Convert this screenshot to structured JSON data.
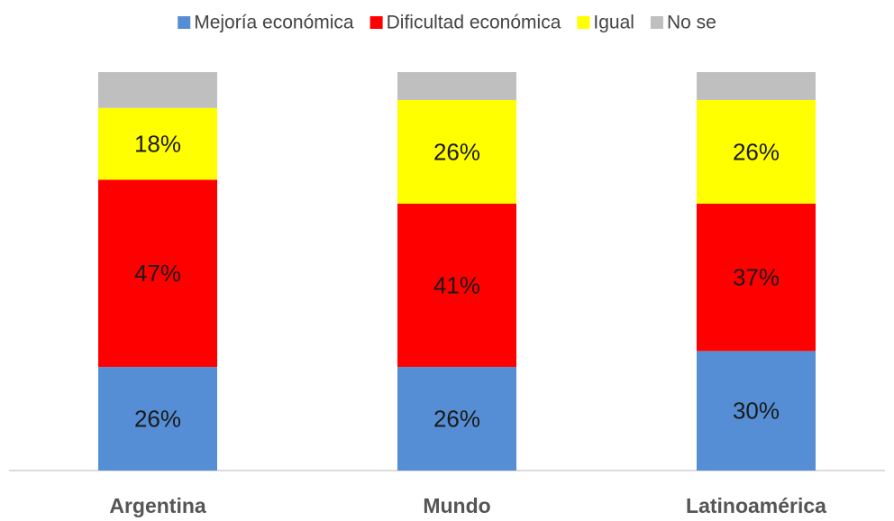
{
  "chart_data": {
    "type": "stacked_bar",
    "categories": [
      "Argentina",
      "Mundo",
      "Latinoamérica"
    ],
    "series": [
      {
        "name": "Mejoría económica",
        "color": "#558ed5",
        "values": [
          26,
          26,
          30
        ],
        "value_labels": [
          "26%",
          "26%",
          "30%"
        ]
      },
      {
        "name": "Dificultad económica",
        "color": "#ff0000",
        "values": [
          47,
          41,
          37
        ],
        "value_labels": [
          "47%",
          "41%",
          "37%"
        ]
      },
      {
        "name": "Igual",
        "color": "#ffff00",
        "values": [
          18,
          26,
          26
        ],
        "value_labels": [
          "18%",
          "26%",
          "26%"
        ]
      },
      {
        "name": "No se",
        "color": "#bfbfbf",
        "values": [
          9,
          7,
          7
        ]
      }
    ],
    "legend": "top"
  }
}
